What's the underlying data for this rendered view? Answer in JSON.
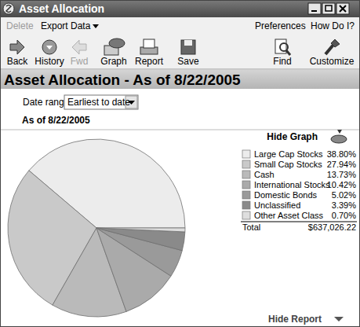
{
  "window": {
    "title": "Asset Allocation"
  },
  "menu": {
    "left": [
      "Delete",
      "Export Data"
    ],
    "right": [
      "Preferences",
      "How Do I?"
    ]
  },
  "toolbar": [
    "Back",
    "History",
    "Fwd",
    "Graph",
    "Report",
    "Save",
    "Find",
    "Customize"
  ],
  "header": "Asset Allocation - As of 8/22/2005",
  "date_range": {
    "label": "Date range:",
    "value": "Earliest to date"
  },
  "as_of": "As of 8/22/2005",
  "hide_graph": "Hide Graph",
  "hide_report": "Hide Report",
  "summary": {
    "label": "Total",
    "value": "$637,026.22"
  },
  "chart_data": {
    "type": "pie",
    "categories": [
      "Large Cap Stocks",
      "Small Cap Stocks",
      "Cash",
      "International Stocks",
      "Domestic Bonds",
      "Unclassified",
      "Other Asset Class"
    ],
    "values": [
      38.8,
      27.94,
      13.73,
      10.42,
      5.02,
      3.39,
      0.7
    ],
    "value_labels": [
      "38.80%",
      "27.94%",
      "13.73%",
      "10.42%",
      "5.02%",
      "3.39%",
      "0.70%"
    ],
    "colors": [
      "#ececec",
      "#c9c9c9",
      "#bababa",
      "#aaaaaa",
      "#9a9a9a",
      "#8a8a8a",
      "#dedede"
    ]
  }
}
